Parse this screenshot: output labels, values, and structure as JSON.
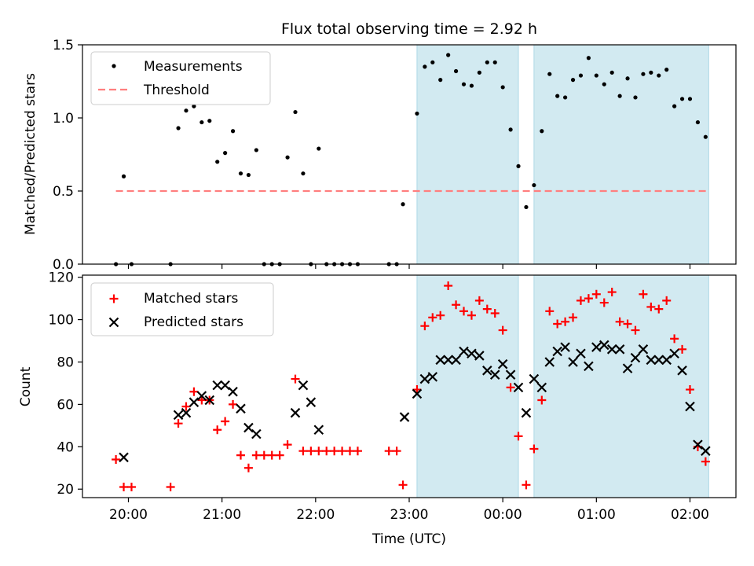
{
  "title": "Flux total observing time = 2.92 h",
  "colors": {
    "measurement": "#000000",
    "threshold": "#ff7f7f",
    "matched": "#ff0000",
    "predicted": "#000000",
    "shade": "#add8e6"
  },
  "chart_data": [
    {
      "type": "scatter",
      "ylabel": "Matched/Predicted stars",
      "ylim": [
        0,
        1.5
      ],
      "yticks": [
        "0.0",
        "0.5",
        "1.0",
        "1.5"
      ],
      "xlim": [
        "19:32",
        "02:30"
      ],
      "legend_position": "top-left",
      "legend": [
        "Measurements",
        "Threshold"
      ],
      "threshold": {
        "value": 0.5,
        "x_range": [
          "19:52",
          "02:12"
        ]
      },
      "shaded_intervals": [
        [
          "23:05",
          "00:10"
        ],
        [
          "00:20",
          "02:12"
        ]
      ],
      "series": [
        {
          "name": "Measurements",
          "x": [
            "19:52",
            "19:57",
            "20:02",
            "20:27",
            "20:32",
            "20:37",
            "20:42",
            "20:47",
            "20:52",
            "20:57",
            "21:02",
            "21:07",
            "21:12",
            "21:17",
            "21:22",
            "21:27",
            "21:32",
            "21:37",
            "21:42",
            "21:47",
            "21:52",
            "21:57",
            "22:02",
            "22:07",
            "22:12",
            "22:17",
            "22:22",
            "22:27",
            "22:47",
            "22:52",
            "22:56",
            "23:05",
            "23:10",
            "23:15",
            "23:20",
            "23:25",
            "23:30",
            "23:35",
            "23:40",
            "23:45",
            "23:50",
            "23:55",
            "00:00",
            "00:05",
            "00:10",
            "00:15",
            "00:20",
            "00:25",
            "00:30",
            "00:35",
            "00:40",
            "00:45",
            "00:50",
            "00:55",
            "01:00",
            "01:05",
            "01:10",
            "01:15",
            "01:20",
            "01:25",
            "01:30",
            "01:35",
            "01:40",
            "01:45",
            "01:50",
            "01:55",
            "02:00",
            "02:05",
            "02:10"
          ],
          "y": [
            0.0,
            0.6,
            0.0,
            0.0,
            0.93,
            1.05,
            1.08,
            0.97,
            0.98,
            0.7,
            0.76,
            0.91,
            0.62,
            0.61,
            0.78,
            0.0,
            0.0,
            0.0,
            0.73,
            1.04,
            0.62,
            0.0,
            0.79,
            0.0,
            0.0,
            0.0,
            0.0,
            0.0,
            0.0,
            0.0,
            0.41,
            1.03,
            1.35,
            1.38,
            1.26,
            1.43,
            1.32,
            1.23,
            1.22,
            1.31,
            1.38,
            1.38,
            1.21,
            0.92,
            0.67,
            0.39,
            0.54,
            0.91,
            1.3,
            1.15,
            1.14,
            1.26,
            1.29,
            1.41,
            1.29,
            1.23,
            1.31,
            1.15,
            1.27,
            1.14,
            1.3,
            1.31,
            1.29,
            1.33,
            1.08,
            1.13,
            1.13,
            0.97,
            0.87
          ]
        }
      ]
    },
    {
      "type": "scatter",
      "ylabel": "Count",
      "xlabel": "Time (UTC)",
      "ylim": [
        16,
        121
      ],
      "yticks": [
        "20",
        "40",
        "60",
        "80",
        "100",
        "120"
      ],
      "xticks": [
        "20:00",
        "21:00",
        "22:00",
        "23:00",
        "00:00",
        "01:00",
        "02:00"
      ],
      "xlim": [
        "19:32",
        "02:30"
      ],
      "legend_position": "top-left",
      "legend": [
        "Matched stars",
        "Predicted stars"
      ],
      "shaded_intervals": [
        [
          "23:05",
          "00:10"
        ],
        [
          "00:20",
          "02:12"
        ]
      ],
      "series": [
        {
          "name": "Matched stars",
          "x": [
            "19:52",
            "19:57",
            "20:02",
            "20:27",
            "20:32",
            "20:37",
            "20:42",
            "20:47",
            "20:52",
            "20:57",
            "21:02",
            "21:07",
            "21:12",
            "21:17",
            "21:22",
            "21:27",
            "21:32",
            "21:37",
            "21:42",
            "21:47",
            "21:52",
            "21:57",
            "22:02",
            "22:07",
            "22:12",
            "22:17",
            "22:22",
            "22:27",
            "22:47",
            "22:52",
            "22:56",
            "23:05",
            "23:10",
            "23:15",
            "23:20",
            "23:25",
            "23:30",
            "23:35",
            "23:40",
            "23:45",
            "23:50",
            "23:55",
            "00:00",
            "00:05",
            "00:10",
            "00:15",
            "00:20",
            "00:25",
            "00:30",
            "00:35",
            "00:40",
            "00:45",
            "00:50",
            "00:55",
            "01:00",
            "01:05",
            "01:10",
            "01:15",
            "01:20",
            "01:25",
            "01:30",
            "01:35",
            "01:40",
            "01:45",
            "01:50",
            "01:55",
            "02:00",
            "02:05",
            "02:10"
          ],
          "y": [
            34,
            21,
            21,
            21,
            51,
            59,
            66,
            62,
            62,
            48,
            52,
            60,
            36,
            30,
            36,
            36,
            36,
            36,
            41,
            72,
            38,
            38,
            38,
            38,
            38,
            38,
            38,
            38,
            38,
            38,
            22,
            67,
            97,
            101,
            102,
            116,
            107,
            104,
            102,
            109,
            105,
            103,
            95,
            68,
            45,
            22,
            39,
            62,
            104,
            98,
            99,
            101,
            109,
            110,
            112,
            108,
            113,
            99,
            98,
            95,
            112,
            106,
            105,
            109,
            91,
            86,
            67,
            40,
            33
          ]
        },
        {
          "name": "Predicted stars",
          "x": [
            "19:57",
            "20:32",
            "20:37",
            "20:42",
            "20:47",
            "20:52",
            "20:57",
            "21:02",
            "21:07",
            "21:12",
            "21:17",
            "21:22",
            "21:47",
            "21:52",
            "21:57",
            "22:02",
            "22:57",
            "23:05",
            "23:10",
            "23:15",
            "23:20",
            "23:25",
            "23:30",
            "23:35",
            "23:40",
            "23:45",
            "23:50",
            "23:55",
            "00:00",
            "00:05",
            "00:10",
            "00:15",
            "00:20",
            "00:25",
            "00:30",
            "00:35",
            "00:40",
            "00:45",
            "00:50",
            "00:55",
            "01:00",
            "01:05",
            "01:10",
            "01:15",
            "01:20",
            "01:25",
            "01:30",
            "01:35",
            "01:40",
            "01:45",
            "01:50",
            "01:55",
            "02:00",
            "02:05",
            "02:10"
          ],
          "y": [
            35,
            55,
            56,
            61,
            64,
            62,
            69,
            69,
            66,
            58,
            49,
            46,
            56,
            69,
            61,
            48,
            54,
            65,
            72,
            73,
            81,
            81,
            81,
            85,
            84,
            83,
            76,
            74,
            79,
            74,
            68,
            56,
            72,
            68,
            80,
            85,
            87,
            80,
            84,
            78,
            87,
            88,
            86,
            86,
            77,
            82,
            86,
            81,
            81,
            81,
            84,
            76,
            59,
            41,
            38
          ]
        }
      ]
    }
  ]
}
